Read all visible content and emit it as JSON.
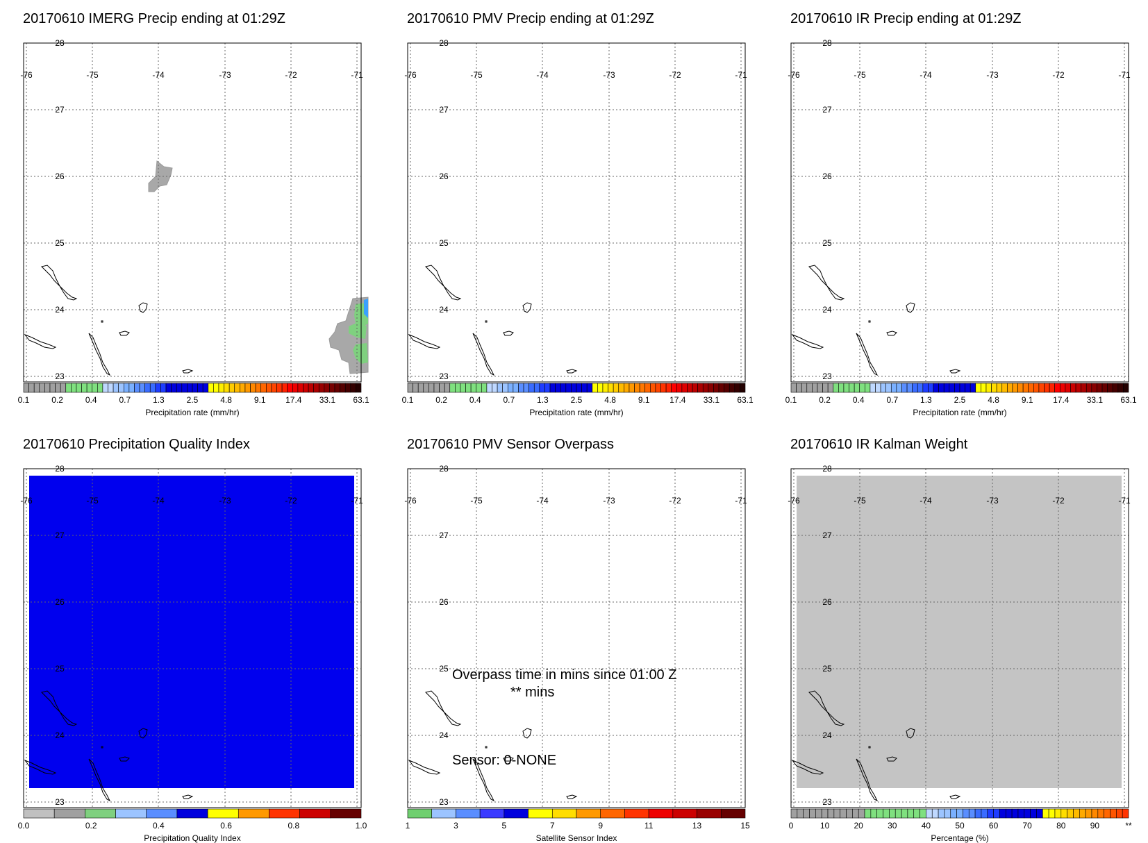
{
  "map": {
    "lon_labels": [
      "-76",
      "-75",
      "-74",
      "-73",
      "-72",
      "-71"
    ],
    "lat_labels": [
      "28",
      "27",
      "26",
      "25",
      "24",
      "23"
    ]
  },
  "panels": [
    {
      "title": "20170610 IMERG Precip ending at 01:29Z",
      "fill": "none",
      "precip_features": true,
      "colorbar": {
        "colors": [
          "#a0a0a0",
          "#a0a0a0",
          "#a0a0a0",
          "#a0a0a0",
          "#a0a0a0",
          "#a0a0a0",
          "#a0a0a0",
          "#a0a0a0",
          "#7fe07f",
          "#7fe07f",
          "#7fe07f",
          "#7fe07f",
          "#7fe07f",
          "#7fe07f",
          "#7fe07f",
          "#bfd8ff",
          "#bfd8ff",
          "#9cc4ff",
          "#9cc4ff",
          "#7ab0ff",
          "#7ab0ff",
          "#5a8eff",
          "#5a8eff",
          "#3a6cff",
          "#3a6cff",
          "#1e3cff",
          "#1e3cff",
          "#0000dd",
          "#0000dd",
          "#0000dd",
          "#0000dd",
          "#0000dd",
          "#0000dd",
          "#0000dd",
          "#0000dd",
          "#ffff00",
          "#ffff00",
          "#ffee00",
          "#ffdd00",
          "#ffcc00",
          "#ffbb00",
          "#ffaa00",
          "#ff9900",
          "#ff8800",
          "#ff7700",
          "#ff6600",
          "#ff5500",
          "#ff4400",
          "#ff3300",
          "#ff2200",
          "#ff0000",
          "#ee0000",
          "#dd0000",
          "#cc0000",
          "#bb0000",
          "#aa0000",
          "#990000",
          "#880000",
          "#770000",
          "#660000",
          "#550000",
          "#440000",
          "#330000",
          "#220000"
        ],
        "labels": [
          "0.1",
          "0.2",
          "0.4",
          "0.7",
          "1.3",
          "2.5",
          "4.8",
          "9.1",
          "17.4",
          "33.1",
          "63.1"
        ],
        "title": "Precipitation rate (mm/hr)"
      }
    },
    {
      "title": "20170610 PMV Precip ending at 01:29Z",
      "fill": "none",
      "colorbar": {
        "colors": [
          "#a0a0a0",
          "#a0a0a0",
          "#a0a0a0",
          "#a0a0a0",
          "#a0a0a0",
          "#a0a0a0",
          "#a0a0a0",
          "#a0a0a0",
          "#7fe07f",
          "#7fe07f",
          "#7fe07f",
          "#7fe07f",
          "#7fe07f",
          "#7fe07f",
          "#7fe07f",
          "#bfd8ff",
          "#bfd8ff",
          "#9cc4ff",
          "#9cc4ff",
          "#7ab0ff",
          "#7ab0ff",
          "#5a8eff",
          "#5a8eff",
          "#3a6cff",
          "#3a6cff",
          "#1e3cff",
          "#1e3cff",
          "#0000dd",
          "#0000dd",
          "#0000dd",
          "#0000dd",
          "#0000dd",
          "#0000dd",
          "#0000dd",
          "#0000dd",
          "#ffff00",
          "#ffff00",
          "#ffee00",
          "#ffdd00",
          "#ffcc00",
          "#ffbb00",
          "#ffaa00",
          "#ff9900",
          "#ff8800",
          "#ff7700",
          "#ff6600",
          "#ff5500",
          "#ff4400",
          "#ff3300",
          "#ff2200",
          "#ff0000",
          "#ee0000",
          "#dd0000",
          "#cc0000",
          "#bb0000",
          "#aa0000",
          "#990000",
          "#880000",
          "#770000",
          "#660000",
          "#550000",
          "#440000",
          "#330000",
          "#220000"
        ],
        "labels": [
          "0.1",
          "0.2",
          "0.4",
          "0.7",
          "1.3",
          "2.5",
          "4.8",
          "9.1",
          "17.4",
          "33.1",
          "63.1"
        ],
        "title": "Precipitation rate (mm/hr)"
      }
    },
    {
      "title": "20170610 IR Precip ending at 01:29Z",
      "fill": "none",
      "colorbar": {
        "colors": [
          "#a0a0a0",
          "#a0a0a0",
          "#a0a0a0",
          "#a0a0a0",
          "#a0a0a0",
          "#a0a0a0",
          "#a0a0a0",
          "#a0a0a0",
          "#7fe07f",
          "#7fe07f",
          "#7fe07f",
          "#7fe07f",
          "#7fe07f",
          "#7fe07f",
          "#7fe07f",
          "#bfd8ff",
          "#bfd8ff",
          "#9cc4ff",
          "#9cc4ff",
          "#7ab0ff",
          "#7ab0ff",
          "#5a8eff",
          "#5a8eff",
          "#3a6cff",
          "#3a6cff",
          "#1e3cff",
          "#1e3cff",
          "#0000dd",
          "#0000dd",
          "#0000dd",
          "#0000dd",
          "#0000dd",
          "#0000dd",
          "#0000dd",
          "#0000dd",
          "#ffff00",
          "#ffff00",
          "#ffee00",
          "#ffdd00",
          "#ffcc00",
          "#ffbb00",
          "#ffaa00",
          "#ff9900",
          "#ff8800",
          "#ff7700",
          "#ff6600",
          "#ff5500",
          "#ff4400",
          "#ff3300",
          "#ff2200",
          "#ff0000",
          "#ee0000",
          "#dd0000",
          "#cc0000",
          "#bb0000",
          "#aa0000",
          "#990000",
          "#880000",
          "#770000",
          "#660000",
          "#550000",
          "#440000",
          "#330000",
          "#220000"
        ],
        "labels": [
          "0.1",
          "0.2",
          "0.4",
          "0.7",
          "1.3",
          "2.5",
          "4.8",
          "9.1",
          "17.4",
          "33.1",
          "63.1"
        ],
        "title": "Precipitation rate (mm/hr)"
      }
    },
    {
      "title": "20170610 Precipitation Quality Index",
      "fill": "#0000ee",
      "colorbar": {
        "colors": [
          "#c0c0c0",
          "#a0a0a0",
          "#7fd07f",
          "#9cc4ff",
          "#5a8eff",
          "#0000dd",
          "#ffff00",
          "#ff9900",
          "#ff3300",
          "#cc0000",
          "#660000"
        ],
        "labels": [
          "0.0",
          "0.2",
          "0.4",
          "0.6",
          "0.8",
          "1.0"
        ],
        "title": "Precipitation Quality Index"
      }
    },
    {
      "title": "20170610 PMV Sensor Overpass",
      "fill": "none",
      "overpass_text": "Overpass time in mins since 01:00 Z",
      "overpass_value": "** mins",
      "sensor_text": "Sensor:   0-NONE",
      "colorbar": {
        "colors": [
          "#6fcf6f",
          "#9cc4ff",
          "#5a8eff",
          "#3a3aff",
          "#0000dd",
          "#ffff00",
          "#ffdd00",
          "#ff9900",
          "#ff6600",
          "#ff3300",
          "#ee0000",
          "#cc0000",
          "#990000",
          "#660000"
        ],
        "labels": [
          "1",
          "3",
          "5",
          "7",
          "9",
          "11",
          "13",
          "15"
        ],
        "title": "Satellite Sensor Index"
      }
    },
    {
      "title": "20170610 IR Kalman Weight",
      "fill": "#c4c4c4",
      "colorbar": {
        "colors": [
          "#a0a0a0",
          "#a0a0a0",
          "#a0a0a0",
          "#a0a0a0",
          "#a0a0a0",
          "#a0a0a0",
          "#a0a0a0",
          "#a0a0a0",
          "#a0a0a0",
          "#a0a0a0",
          "#a0a0a0",
          "#a0a0a0",
          "#7fe07f",
          "#7fe07f",
          "#7fe07f",
          "#7fe07f",
          "#7fe07f",
          "#7fe07f",
          "#7fe07f",
          "#7fe07f",
          "#7fe07f",
          "#7fe07f",
          "#bfd8ff",
          "#bfd8ff",
          "#9cc4ff",
          "#9cc4ff",
          "#7ab0ff",
          "#7ab0ff",
          "#5a8eff",
          "#5a8eff",
          "#3a6cff",
          "#3a6cff",
          "#1e3cff",
          "#1e3cff",
          "#0000dd",
          "#0000dd",
          "#0000dd",
          "#0000dd",
          "#0000dd",
          "#0000dd",
          "#0000dd",
          "#ffff00",
          "#ffff00",
          "#ffee00",
          "#ffdd00",
          "#ffcc00",
          "#ffbb00",
          "#ffaa00",
          "#ff9900",
          "#ff8800",
          "#ff7700",
          "#ff6600",
          "#ff5500",
          "#ff4400",
          "#ff3300"
        ],
        "labels": [
          "0",
          "10",
          "20",
          "30",
          "40",
          "50",
          "60",
          "70",
          "80",
          "90",
          "**"
        ],
        "title": "Percentage (%)"
      }
    }
  ]
}
